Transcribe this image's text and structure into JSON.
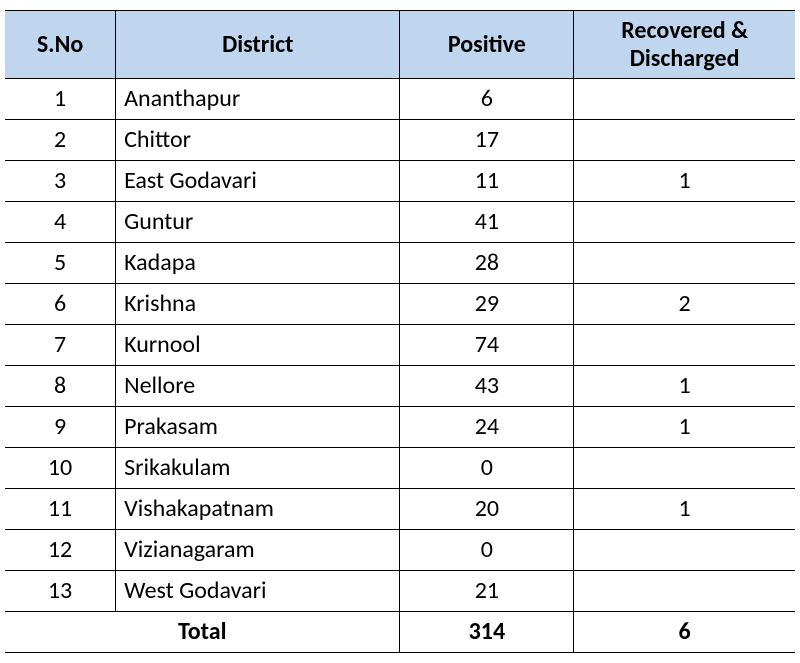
{
  "table": {
    "columns": [
      {
        "label": "S.No",
        "width": "14%",
        "align": "center"
      },
      {
        "label": "District",
        "width": "36%",
        "align": "left"
      },
      {
        "label": "Positive",
        "width": "22%",
        "align": "center"
      },
      {
        "label": "Recovered & Discharged",
        "width": "28%",
        "align": "center"
      }
    ],
    "rows": [
      {
        "sno": "1",
        "district": "Ananthapur",
        "positive": "6",
        "recovered": ""
      },
      {
        "sno": "2",
        "district": "Chittor",
        "positive": "17",
        "recovered": ""
      },
      {
        "sno": "3",
        "district": "East Godavari",
        "positive": "11",
        "recovered": "1"
      },
      {
        "sno": "4",
        "district": "Guntur",
        "positive": "41",
        "recovered": ""
      },
      {
        "sno": "5",
        "district": "Kadapa",
        "positive": "28",
        "recovered": ""
      },
      {
        "sno": "6",
        "district": "Krishna",
        "positive": "29",
        "recovered": "2"
      },
      {
        "sno": "7",
        "district": "Kurnool",
        "positive": "74",
        "recovered": ""
      },
      {
        "sno": "8",
        "district": "Nellore",
        "positive": "43",
        "recovered": "1"
      },
      {
        "sno": "9",
        "district": "Prakasam",
        "positive": "24",
        "recovered": "1"
      },
      {
        "sno": "10",
        "district": "Srikakulam",
        "positive": "0",
        "recovered": ""
      },
      {
        "sno": "11",
        "district": "Vishakapatnam",
        "positive": "20",
        "recovered": "1"
      },
      {
        "sno": "12",
        "district": "Vizianagaram",
        "positive": "0",
        "recovered": ""
      },
      {
        "sno": "13",
        "district": "West Godavari",
        "positive": "21",
        "recovered": ""
      }
    ],
    "total": {
      "label": "Total",
      "positive": "314",
      "recovered": "6"
    },
    "header_bg": "#c0d6ee",
    "border_color": "#000000",
    "font_family": "Calibri",
    "header_fontsize_pt": 18,
    "cell_fontsize_pt": 18
  }
}
